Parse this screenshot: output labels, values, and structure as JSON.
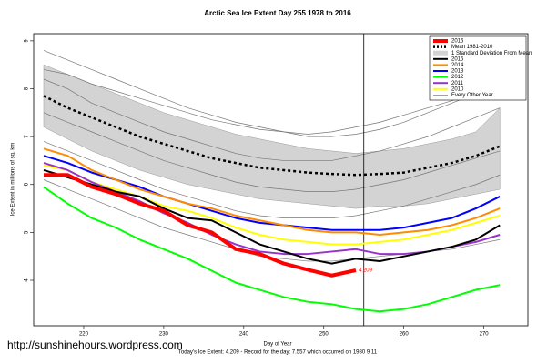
{
  "chart_data": {
    "type": "line",
    "title": "Arctic Sea Ice Extent Day 255 1978 to 2016",
    "x_label": "Day of Year",
    "y_label": "Ice Extent in millions of sq. km",
    "subtitle": "Today's Ice Extent: 4.209  - Record for the day: 7.557 which occurred on 1980 9 11",
    "watermark": "http://sunshinehours.wordpress.com",
    "x": [
      215,
      218,
      221,
      224,
      227,
      230,
      233,
      236,
      239,
      242,
      245,
      248,
      251,
      254,
      257,
      260,
      263,
      266,
      269,
      272
    ],
    "xlim": [
      213.75,
      275.5
    ],
    "xticks": [
      220,
      230,
      240,
      250,
      260,
      270
    ],
    "ylim": [
      3.05,
      9.15
    ],
    "yticks": [
      4,
      5,
      6,
      7,
      8,
      9
    ],
    "vline": 255,
    "legend": "top-right",
    "series": [
      {
        "name": "2016",
        "color": "#ff0000",
        "values": [
          6.2,
          6.2,
          5.95,
          5.8,
          5.6,
          5.45,
          5.15,
          5.0,
          4.65,
          4.55,
          4.35,
          4.22,
          4.1,
          4.209,
          null,
          null,
          null,
          null,
          null,
          null
        ],
        "value_labels": [
          null,
          null,
          null,
          null,
          null,
          null,
          null,
          null,
          null,
          null,
          null,
          null,
          null,
          "4.209",
          null,
          null,
          null,
          null,
          null,
          null
        ]
      },
      {
        "name": "Mean 1981-2010",
        "color": "#000000",
        "dashed": true,
        "values": [
          7.85,
          7.6,
          7.4,
          7.2,
          7.0,
          6.85,
          6.7,
          6.55,
          6.45,
          6.35,
          6.3,
          6.25,
          6.22,
          6.2,
          6.22,
          6.25,
          6.35,
          6.45,
          6.6,
          6.8
        ]
      },
      {
        "name": "2015",
        "color": "#000000",
        "values": [
          6.3,
          6.15,
          6.0,
          5.85,
          5.75,
          5.5,
          5.3,
          5.25,
          5.0,
          4.75,
          4.6,
          4.45,
          4.35,
          4.45,
          4.4,
          4.5,
          4.6,
          4.7,
          4.85,
          5.15
        ]
      },
      {
        "name": "2014",
        "color": "#ff8c00",
        "values": [
          6.75,
          6.6,
          6.3,
          6.1,
          5.9,
          5.75,
          5.6,
          5.5,
          5.35,
          5.25,
          5.15,
          5.05,
          5.0,
          5.0,
          4.95,
          5.0,
          5.05,
          5.15,
          5.3,
          5.5
        ]
      },
      {
        "name": "2013",
        "color": "#0000ff",
        "values": [
          6.6,
          6.45,
          6.25,
          6.1,
          5.95,
          5.75,
          5.6,
          5.45,
          5.3,
          5.2,
          5.15,
          5.1,
          5.05,
          5.05,
          5.05,
          5.1,
          5.2,
          5.3,
          5.5,
          5.75
        ]
      },
      {
        "name": "2012",
        "color": "#00ff00",
        "values": [
          5.95,
          5.6,
          5.3,
          5.1,
          4.85,
          4.65,
          4.45,
          4.2,
          3.95,
          3.8,
          3.65,
          3.55,
          3.5,
          3.4,
          3.35,
          3.4,
          3.5,
          3.65,
          3.8,
          3.9
        ]
      },
      {
        "name": "2011",
        "color": "#9932cc",
        "values": [
          6.45,
          6.3,
          6.05,
          5.85,
          5.65,
          5.4,
          5.2,
          4.95,
          4.75,
          4.6,
          4.55,
          4.55,
          4.6,
          4.65,
          4.55,
          4.55,
          4.6,
          4.7,
          4.8,
          4.95
        ]
      },
      {
        "name": "2010",
        "color": "#ffff00",
        "values": [
          6.4,
          6.3,
          6.05,
          5.9,
          5.75,
          5.55,
          5.45,
          5.3,
          5.1,
          4.95,
          4.85,
          4.8,
          4.75,
          4.75,
          4.8,
          4.85,
          4.95,
          5.05,
          5.2,
          5.35
        ]
      }
    ],
    "band": {
      "name": "1 Standard Deviation From Mean",
      "color": "#d3d3d3",
      "upper": [
        8.5,
        8.3,
        8.1,
        7.9,
        7.7,
        7.5,
        7.35,
        7.2,
        7.05,
        6.95,
        6.85,
        6.75,
        6.7,
        6.65,
        6.7,
        6.75,
        6.85,
        6.95,
        7.1,
        7.6
      ],
      "lower": [
        7.2,
        6.95,
        6.7,
        6.5,
        6.3,
        6.15,
        6.0,
        5.9,
        5.8,
        5.7,
        5.65,
        5.6,
        5.55,
        5.5,
        5.55,
        5.55,
        5.6,
        5.7,
        5.8,
        5.9
      ]
    },
    "other_years": {
      "name": "Every Other Year",
      "color": "#777777",
      "lines": [
        [
          8.8,
          8.6,
          8.4,
          8.2,
          8.0,
          7.8,
          7.6,
          7.45,
          7.3,
          7.2,
          7.1,
          7.0,
          7.0,
          7.05,
          7.15,
          7.3,
          7.5,
          7.7,
          7.9,
          8.1
        ],
        [
          8.2,
          8.0,
          7.7,
          7.5,
          7.3,
          7.1,
          6.95,
          6.8,
          6.65,
          6.55,
          6.5,
          6.5,
          6.5,
          6.6,
          6.7,
          6.85,
          7.0,
          7.2,
          7.4,
          7.6
        ],
        [
          7.5,
          7.3,
          7.1,
          6.9,
          6.7,
          6.5,
          6.35,
          6.2,
          6.05,
          5.95,
          5.9,
          5.85,
          5.85,
          5.9,
          6.0,
          6.1,
          6.25,
          6.4,
          6.55,
          6.7
        ],
        [
          6.9,
          6.7,
          6.5,
          6.3,
          6.1,
          5.9,
          5.75,
          5.6,
          5.45,
          5.35,
          5.3,
          5.3,
          5.3,
          5.35,
          5.45,
          5.55,
          5.7,
          5.85,
          6.0,
          6.2
        ],
        [
          6.1,
          5.9,
          5.7,
          5.5,
          5.3,
          5.1,
          4.95,
          4.8,
          4.65,
          4.5,
          4.45,
          4.4,
          4.4,
          4.45,
          4.5,
          4.55,
          4.6,
          4.65,
          4.75,
          4.85
        ],
        [
          8.4,
          8.3,
          8.1,
          7.95,
          7.8,
          7.65,
          7.5,
          7.35,
          7.25,
          7.15,
          7.1,
          7.05,
          7.1,
          7.2,
          7.3,
          7.45,
          7.6,
          7.75,
          7.9,
          8.05
        ]
      ]
    }
  }
}
